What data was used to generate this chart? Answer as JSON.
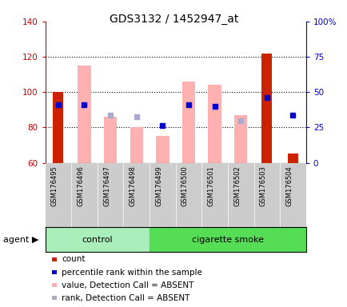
{
  "title": "GDS3132 / 1452947_at",
  "samples": [
    "GSM176495",
    "GSM176496",
    "GSM176497",
    "GSM176498",
    "GSM176499",
    "GSM176500",
    "GSM176501",
    "GSM176502",
    "GSM176503",
    "GSM176504"
  ],
  "red_bars": [
    100,
    null,
    null,
    null,
    null,
    null,
    null,
    null,
    122,
    65
  ],
  "pink_bars_top": [
    null,
    115,
    86,
    80,
    75,
    106,
    104,
    87,
    null,
    null
  ],
  "blue_squares_y": [
    93,
    93,
    null,
    null,
    81,
    93,
    92,
    null,
    97,
    87
  ],
  "blue_squares_x": [
    0,
    1,
    null,
    null,
    4,
    5,
    6,
    null,
    8,
    9
  ],
  "lavender_squares_y": [
    null,
    null,
    87,
    86,
    null,
    null,
    null,
    84,
    null,
    null
  ],
  "lavender_squares_x": [
    null,
    null,
    2,
    3,
    null,
    null,
    null,
    7,
    null,
    null
  ],
  "ylim_left": [
    60,
    140
  ],
  "ylim_right": [
    0,
    100
  ],
  "yticks_left": [
    60,
    80,
    100,
    120,
    140
  ],
  "yticks_right": [
    0,
    25,
    50,
    75,
    100
  ],
  "ytick_labels_right": [
    "0",
    "25",
    "50",
    "75",
    "100%"
  ],
  "left_axis_color": "#cc0000",
  "right_axis_color": "#0000cc",
  "bar_bg_color": "#cccccc",
  "pink_color": "#ffb0b0",
  "red_color": "#cc2200",
  "blue_color": "#0000cc",
  "lavender_color": "#aaaacc",
  "control_color": "#aaeebb",
  "smoke_color": "#55dd55",
  "legend": [
    {
      "color": "#cc2200",
      "label": "count"
    },
    {
      "color": "#0000cc",
      "label": "percentile rank within the sample"
    },
    {
      "color": "#ffb0b0",
      "label": "value, Detection Call = ABSENT"
    },
    {
      "color": "#aaaacc",
      "label": "rank, Detection Call = ABSENT"
    }
  ]
}
